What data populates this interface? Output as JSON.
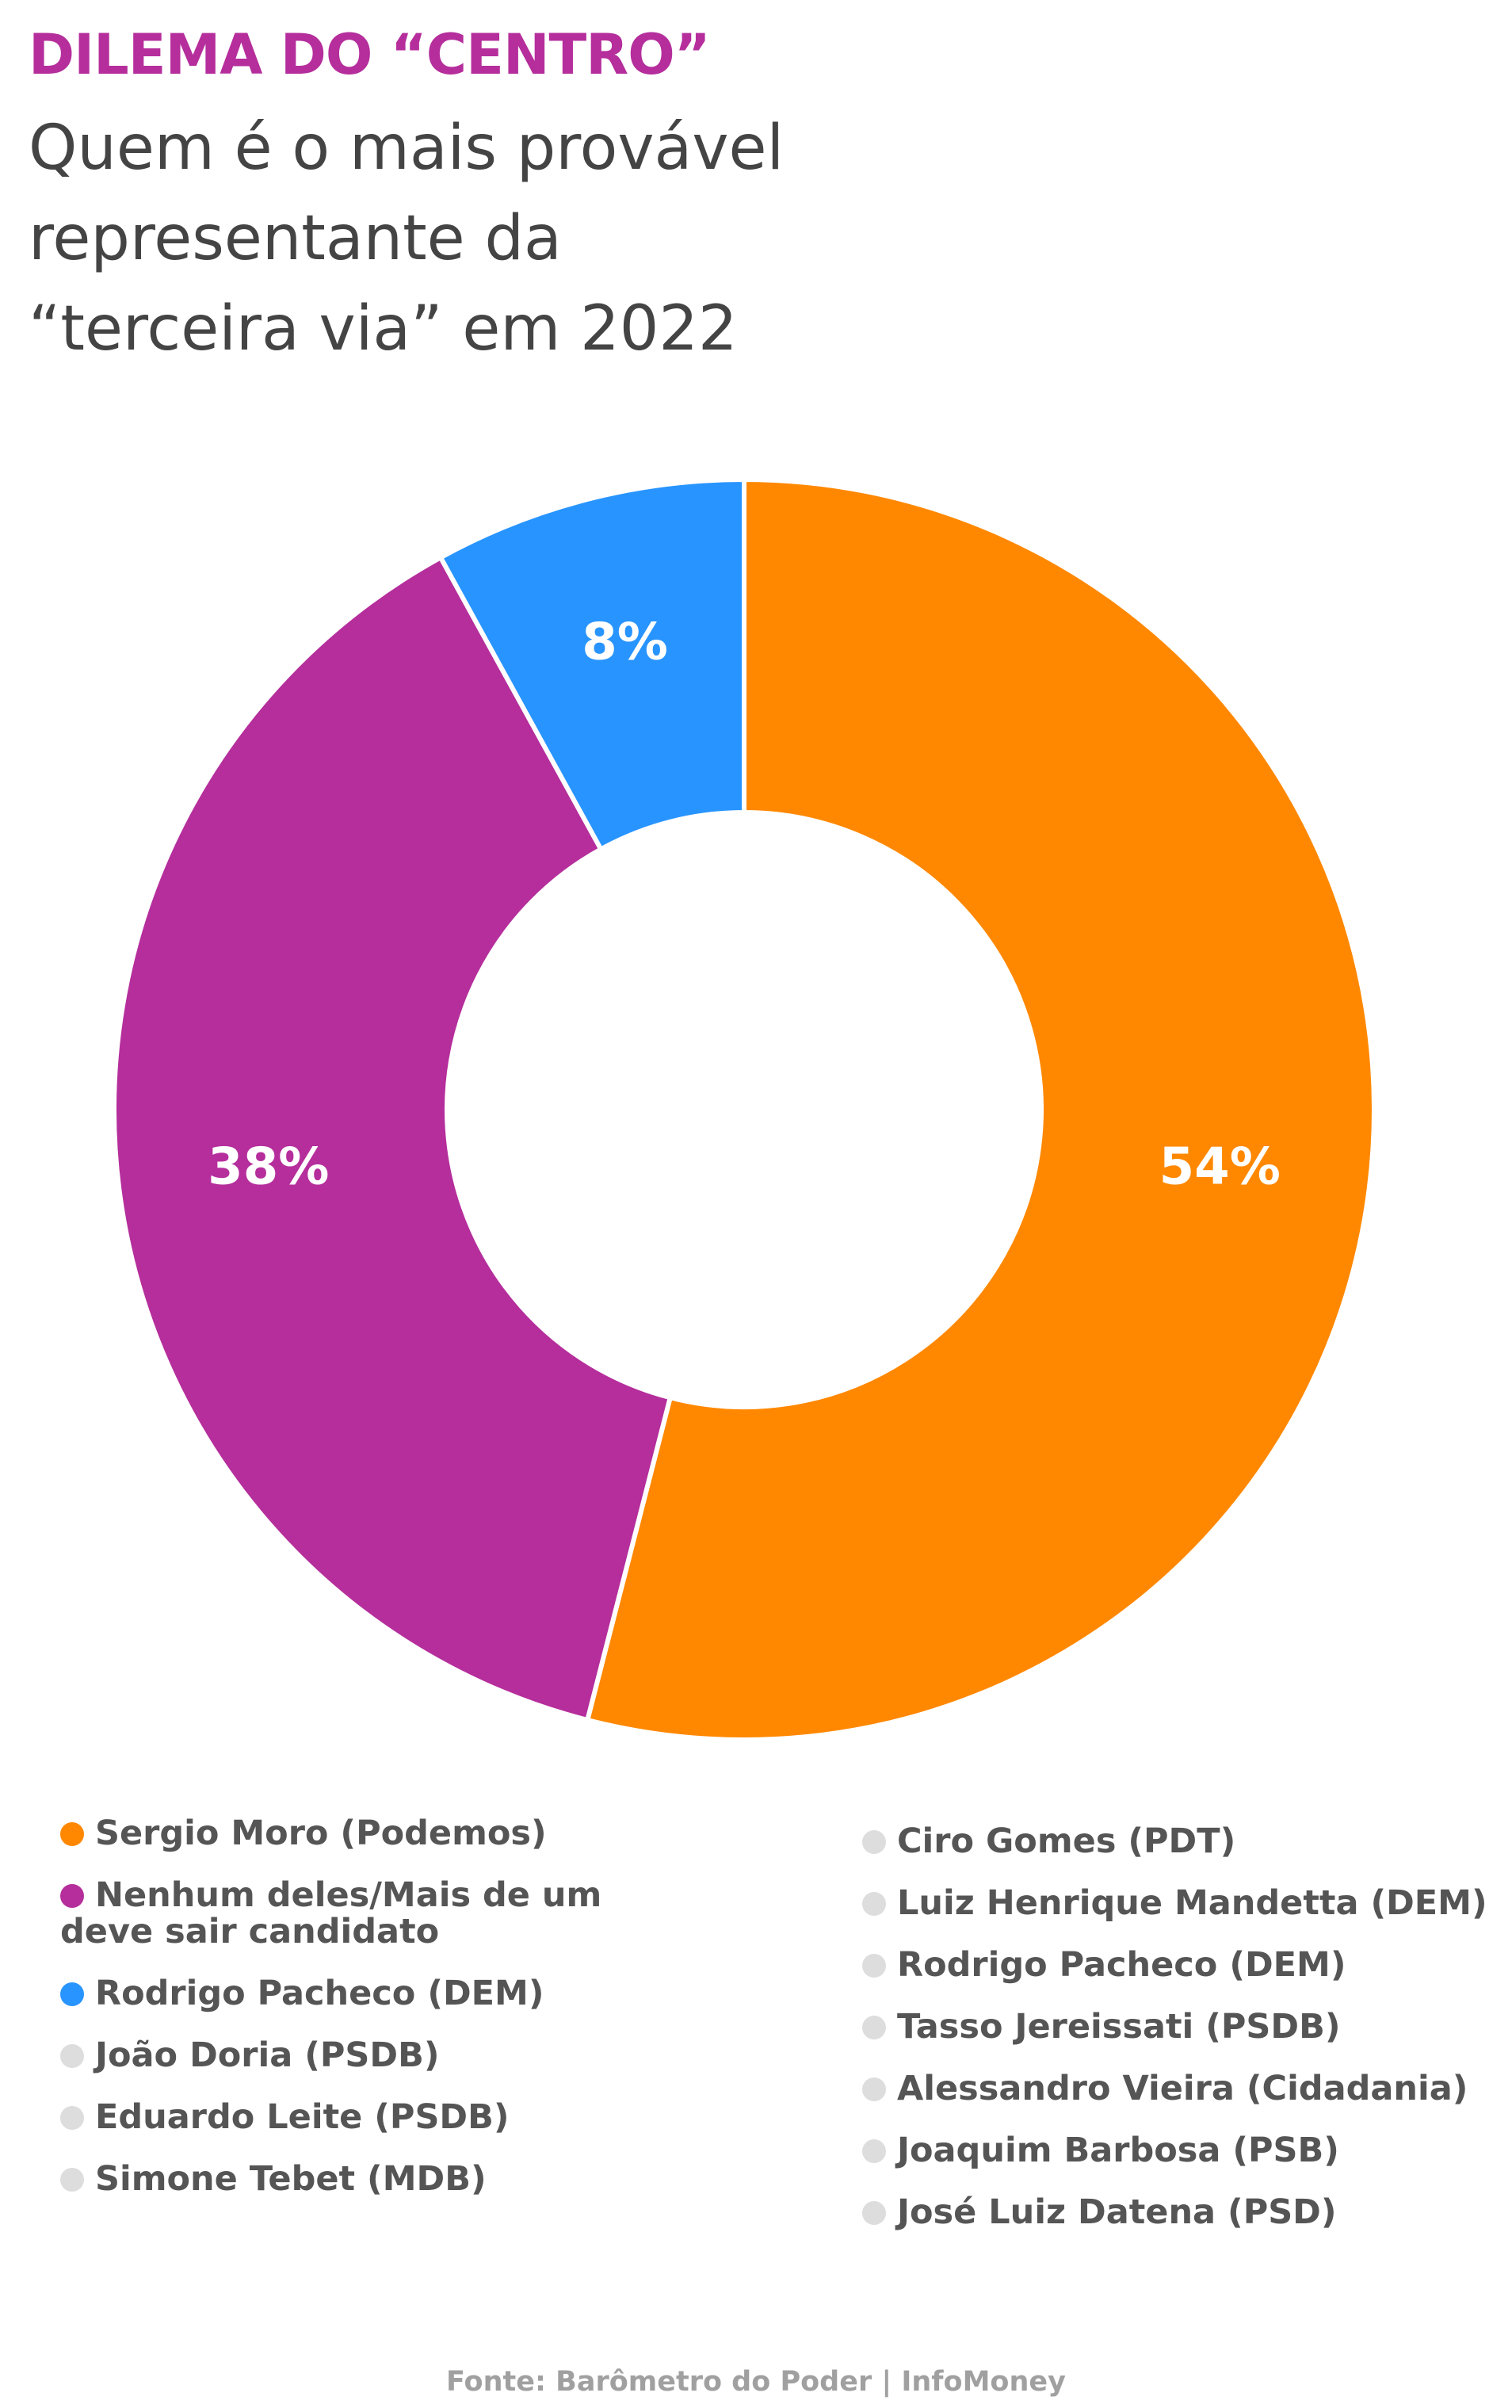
{
  "chart_data": {
    "type": "donut",
    "title": "DILEMA DO “CENTRO”",
    "subtitle": "Quem é o mais provável representante da “terceira via” em 2022",
    "categories": [
      "Sergio Moro (Podemos)",
      "Nenhum deles/Mais de um deve sair candidato",
      "Rodrigo Pacheco (DEM)",
      "João Doria (PSDB)",
      "Eduardo Leite (PSDB)",
      "Simone Tebet (MDB)",
      "Ciro Gomes (PDT)",
      "Luiz Henrique Mandetta (DEM)",
      "Rodrigo Pacheco (DEM)",
      "Tasso Jereissati (PSDB)",
      "Alessandro Vieira (Cidadania)",
      "Joaquim Barbosa (PSB)",
      "José Luiz Datena (PSD)"
    ],
    "values": [
      54,
      38,
      8,
      null,
      null,
      null,
      null,
      null,
      null,
      null,
      null,
      null,
      null
    ],
    "value_labels": [
      "54%",
      "38%",
      "8%",
      null,
      null,
      null,
      null,
      null,
      null,
      null,
      null,
      null,
      null
    ],
    "colors": [
      "#ff8800",
      "#b52e9c",
      "#2894ff",
      "#dddddd",
      "#dddddd",
      "#dddddd",
      "#dddddd",
      "#dddddd",
      "#dddddd",
      "#dddddd",
      "#dddddd",
      "#dddddd",
      "#dddddd"
    ],
    "source": "Fonte: Barômetro do Poder | InfoMoney"
  }
}
